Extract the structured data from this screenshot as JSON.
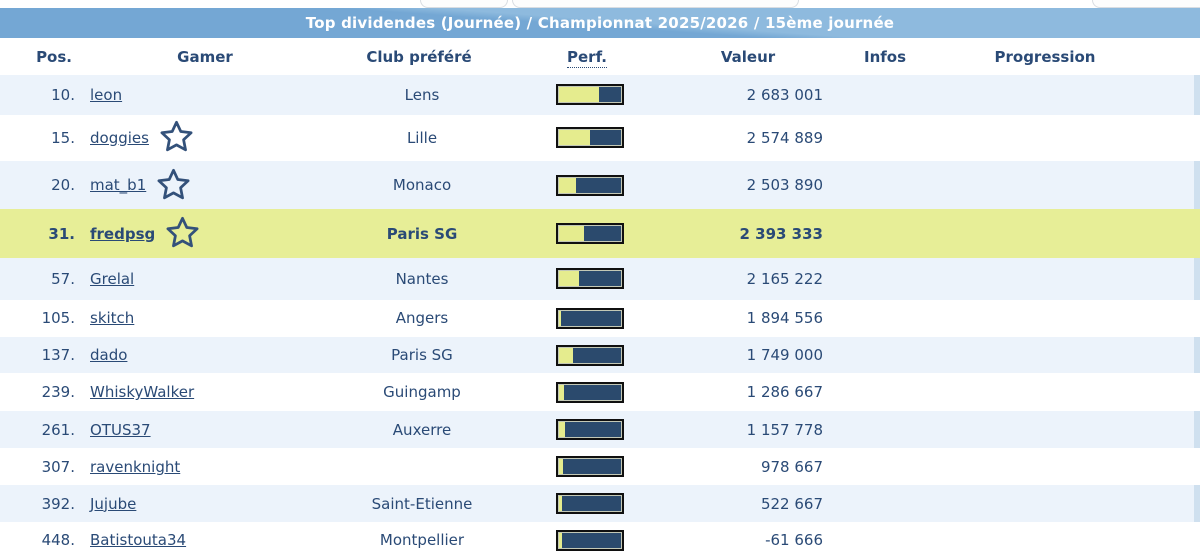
{
  "banner": {
    "title": "Top dividendes (Journée) / Championnat 2025/2026 / 15ème journée"
  },
  "columns": [
    {
      "label": "Pos."
    },
    {
      "label": "Gamer"
    },
    {
      "label": "Club préféré"
    },
    {
      "label": "Perf."
    },
    {
      "label": "Valeur"
    },
    {
      "label": "Infos"
    },
    {
      "label": "Progression"
    }
  ],
  "rows": [
    {
      "pos": "10.",
      "gamer": "leon",
      "has_star": false,
      "club": "Lens",
      "perf_pct": 65,
      "valeur": "2 683 001",
      "highlight": false
    },
    {
      "pos": "15.",
      "gamer": "doggies",
      "has_star": true,
      "club": "Lille",
      "perf_pct": 50,
      "valeur": "2 574 889",
      "highlight": false
    },
    {
      "pos": "20.",
      "gamer": "mat_b1",
      "has_star": true,
      "club": "Monaco",
      "perf_pct": 28,
      "valeur": "2 503 890",
      "highlight": false
    },
    {
      "pos": "31.",
      "gamer": "fredpsg",
      "has_star": true,
      "club": "Paris SG",
      "perf_pct": 40,
      "valeur": "2 393 333",
      "highlight": true
    },
    {
      "pos": "57.",
      "gamer": "Grelal",
      "has_star": false,
      "club": "Nantes",
      "perf_pct": 33,
      "valeur": "2 165 222",
      "highlight": false
    },
    {
      "pos": "105.",
      "gamer": "skitch",
      "has_star": false,
      "club": "Angers",
      "perf_pct": 4,
      "valeur": "1 894 556",
      "highlight": false
    },
    {
      "pos": "137.",
      "gamer": "dado",
      "has_star": false,
      "club": "Paris SG",
      "perf_pct": 22,
      "valeur": "1 749 000",
      "highlight": false
    },
    {
      "pos": "239.",
      "gamer": "WhiskyWalker",
      "has_star": false,
      "club": "Guingamp",
      "perf_pct": 8,
      "valeur": "1 286 667",
      "highlight": false
    },
    {
      "pos": "261.",
      "gamer": "OTUS37",
      "has_star": false,
      "club": "Auxerre",
      "perf_pct": 9,
      "valeur": "1 157 778",
      "highlight": false
    },
    {
      "pos": "307.",
      "gamer": "ravenknight",
      "has_star": false,
      "club": "",
      "perf_pct": 7,
      "valeur": "978 667",
      "highlight": false
    },
    {
      "pos": "392.",
      "gamer": "Jujube",
      "has_star": false,
      "club": "Saint-Etienne",
      "perf_pct": 5,
      "valeur": "522 667",
      "highlight": false
    },
    {
      "pos": "448.",
      "gamer": "Batistouta34",
      "has_star": false,
      "club": "Montpellier",
      "perf_pct": 5,
      "valeur": "-61 666",
      "highlight": false
    }
  ],
  "icons": {
    "favorite_star": "star-outline-icon"
  },
  "colors": {
    "banner_blue_top": "#8ebade",
    "banner_blue_bottom": "#74a7d4",
    "text_navy": "#2a4a76",
    "row_stripe_blue": "#ecf3fb",
    "highlight_yellow": "#e7ee97",
    "bar_fill_yellow": "#e5ec8e",
    "bar_empty_navy": "#2b4a6d",
    "bar_border_black": "#101010"
  }
}
